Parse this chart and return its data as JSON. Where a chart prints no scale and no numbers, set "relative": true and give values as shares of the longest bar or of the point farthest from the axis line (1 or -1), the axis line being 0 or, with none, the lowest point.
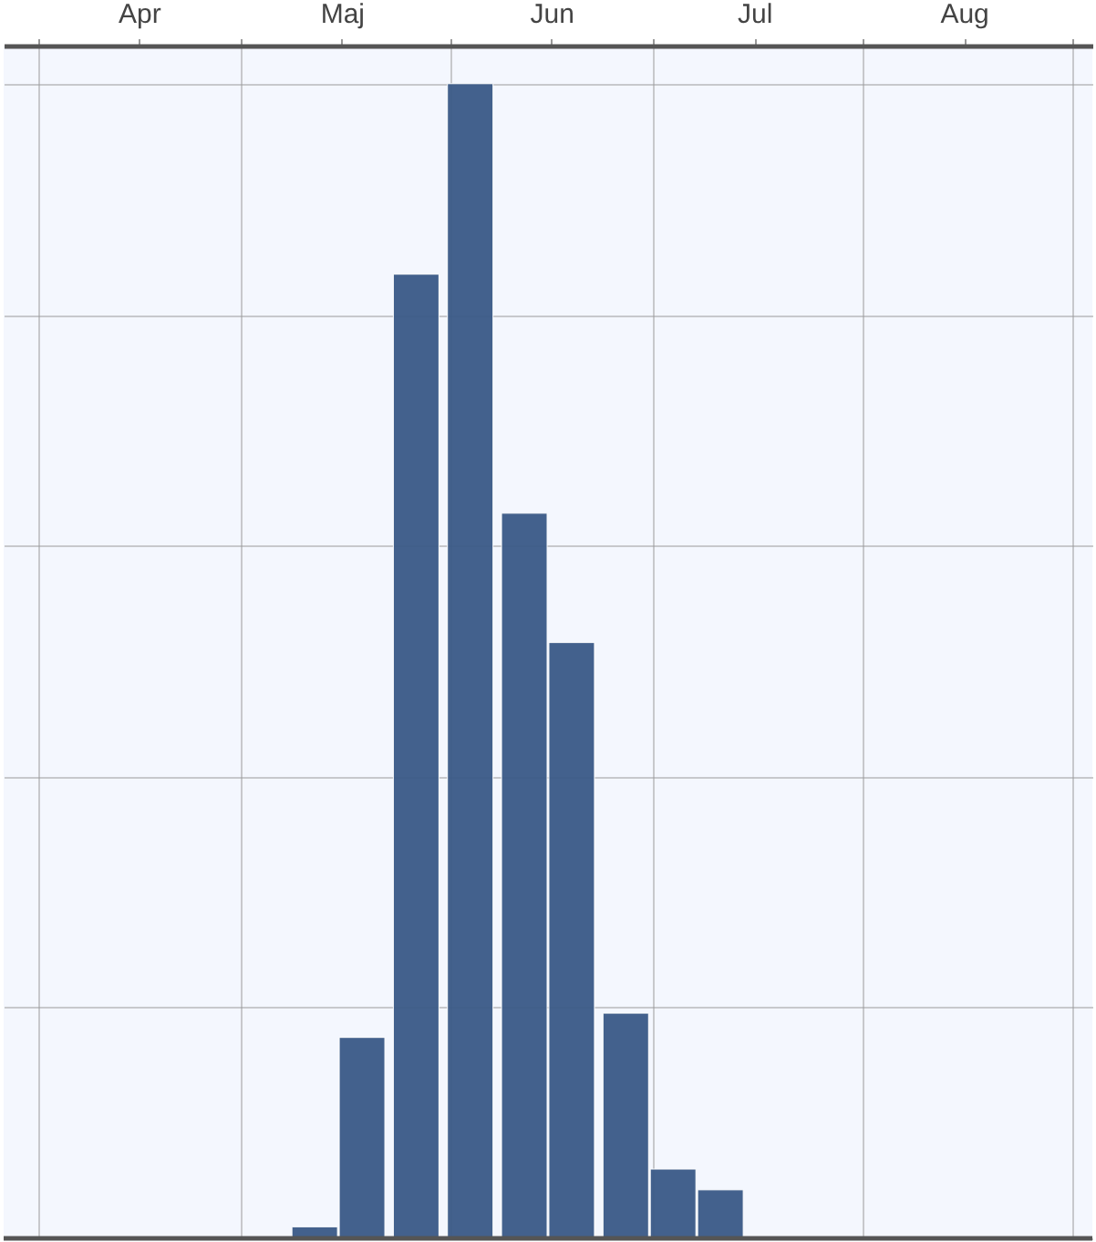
{
  "chart_data": {
    "type": "bar",
    "relative": true,
    "x": [
      "--05-12",
      "--05-19",
      "--05-27",
      "--06-04",
      "--06-12",
      "--06-19",
      "--06-27",
      "--07-04",
      "--07-11"
    ],
    "values": [
      0.01,
      0.174,
      0.835,
      1,
      0.628,
      0.516,
      0.195,
      0.06,
      0.042
    ],
    "color": "#3a5a87",
    "xlim": [
      "--03-27",
      "--09-04"
    ],
    "xticks": [
      {
        "value": "--04-01",
        "label": null
      },
      {
        "value": "--04-16",
        "label": "Apr"
      },
      {
        "value": "--05-01",
        "label": null
      },
      {
        "value": "--05-16",
        "label": "Maj"
      },
      {
        "value": "--06-01",
        "label": null
      },
      {
        "value": "--06-16",
        "label": "Jun"
      },
      {
        "value": "--07-01",
        "label": null
      },
      {
        "value": "--07-16",
        "label": "Jul"
      },
      {
        "value": "--08-01",
        "label": null
      },
      {
        "value": "--08-16",
        "label": "Aug"
      },
      {
        "value": "--09-01",
        "label": null
      }
    ],
    "grid": true,
    "tick_labels": "x"
  }
}
